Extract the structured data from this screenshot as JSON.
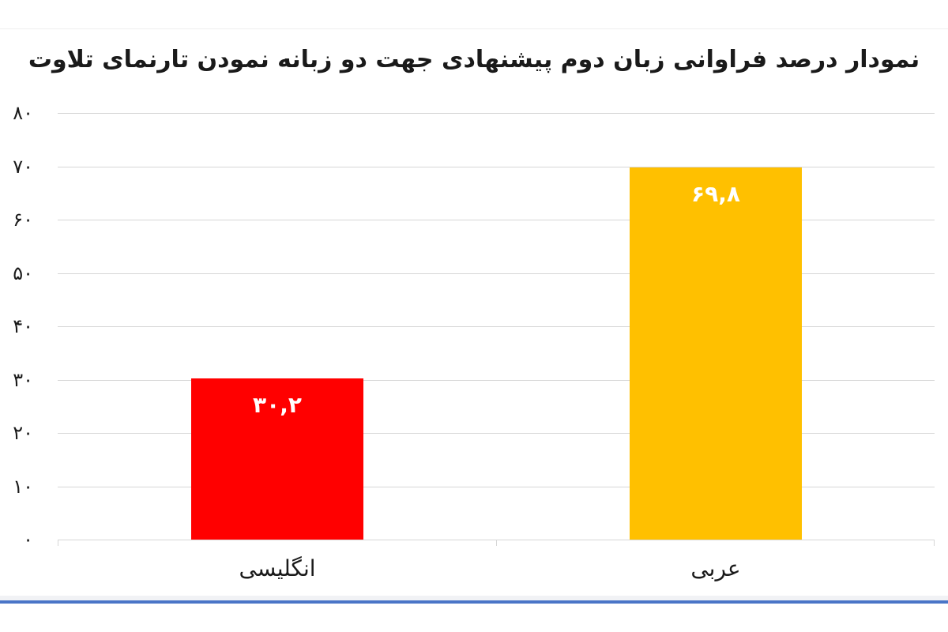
{
  "page": {
    "background_color": "#ffffff"
  },
  "decorations": {
    "top_rule_color": "#efefef",
    "bottom_accent_color": "#4a75c7",
    "bottom_halo_color": "#f1f2f5"
  },
  "chart_data": {
    "type": "bar",
    "title": "نمودار درصد فراوانی زبان دوم پیشنهادی جهت دو زبانه نمودن تارنمای تلاوت",
    "rtl": true,
    "categories": [
      "انگلیسی",
      "عربی"
    ],
    "values": [
      30.2,
      69.8
    ],
    "value_labels": [
      "۳۰,۲",
      "۶۹,۸"
    ],
    "bar_colors": [
      "#ff0000",
      "#ffc000"
    ],
    "value_label_color": "#ffffff",
    "y_tick_values": [
      0,
      10,
      20,
      30,
      40,
      50,
      60,
      70,
      80
    ],
    "y_tick_labels": [
      "۰",
      "۱۰",
      "۲۰",
      "۳۰",
      "۴۰",
      "۵۰",
      "۶۰",
      "۷۰",
      "۸۰"
    ],
    "ylim": [
      0,
      80
    ],
    "xlabel": "",
    "ylabel": "",
    "grid": true,
    "gridline_color": "#d6d6d6",
    "axis_line_color": "#d6d6d6",
    "tick_label_color": "#1a1a1a",
    "legend": "none"
  }
}
